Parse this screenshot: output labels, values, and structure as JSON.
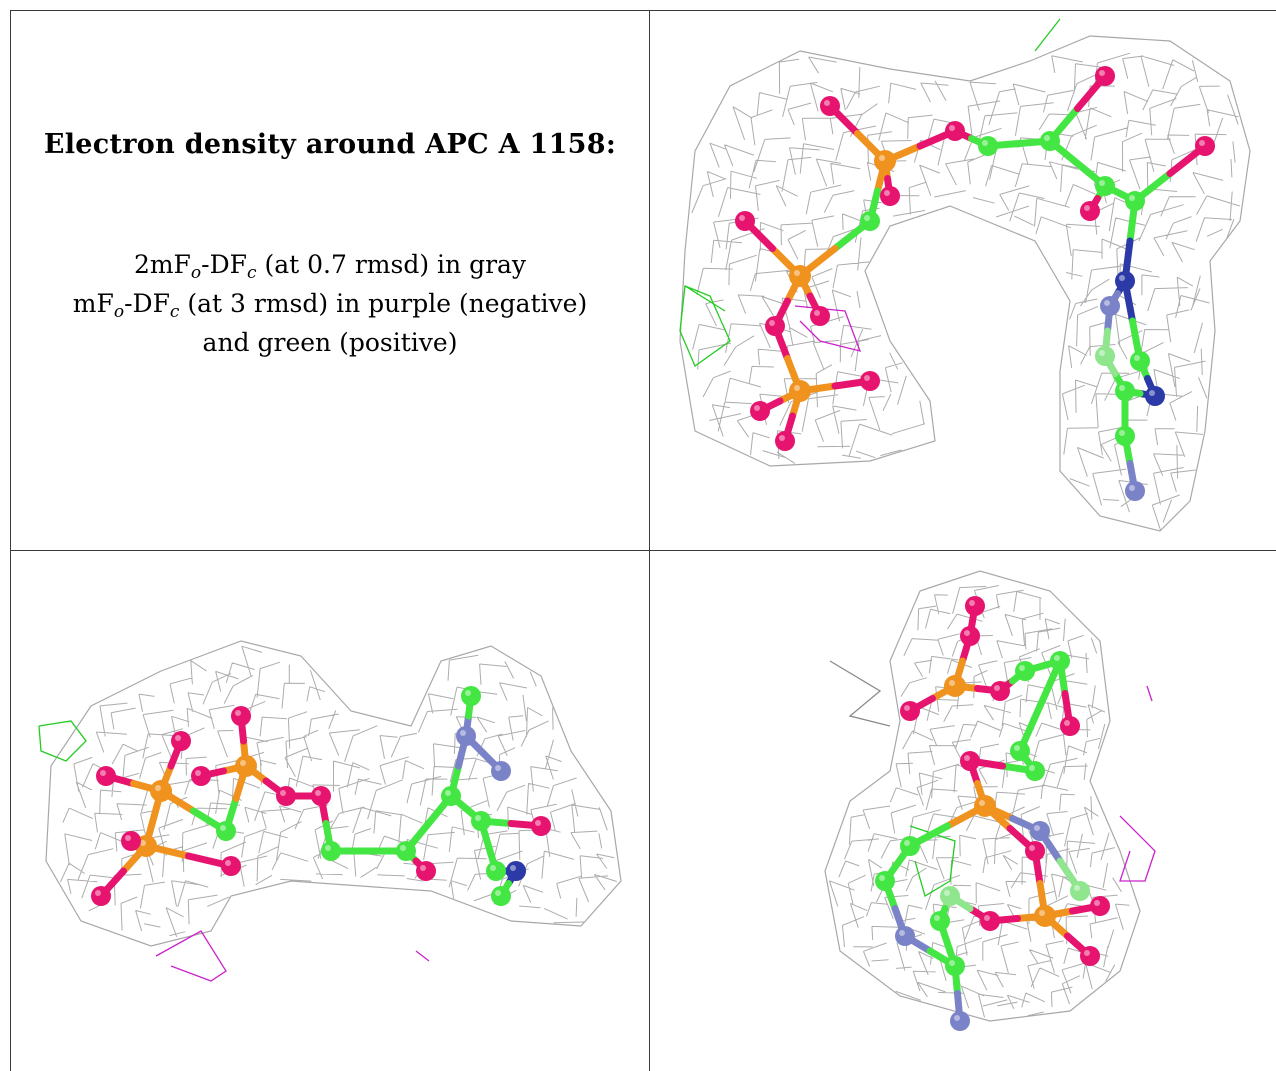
{
  "caption": {
    "title": "Electron density around APC A 1158:",
    "line1": {
      "pre": "2mF",
      "sub1": "o",
      "mid": "-DF",
      "sub2": "c",
      "post": " (at 0.7 rmsd) in gray"
    },
    "line2": {
      "pre": "mF",
      "sub1": "o",
      "mid": "-DF",
      "sub2": "c",
      "post": " (at 3 rmsd) in purple (negative)"
    },
    "line3": "and green (positive)"
  },
  "colors": {
    "mesh_2fofc": "#9e9e9e",
    "positive_difference": "#22cc22",
    "negative_difference": "#cc22cc",
    "carbon": "#44e644",
    "oxygen": "#e6146e",
    "phosphorus": "#f0921e",
    "nitrogen": "#2b3aa6",
    "nitrogen_faded": "#7a82c8",
    "border": "#3a3a3a"
  },
  "views": [
    {
      "name": "view-top-right"
    },
    {
      "name": "view-bottom-left"
    },
    {
      "name": "view-bottom-right"
    }
  ]
}
